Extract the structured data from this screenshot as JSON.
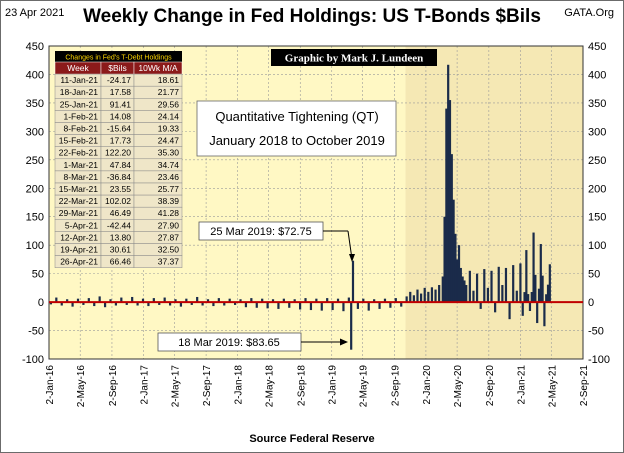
{
  "header": {
    "date": "23 Apr 2021",
    "title": "Weekly Change in Fed Holdings: US T-Bonds $Bils",
    "site": "GATA.Org"
  },
  "credit": "Graphic by Mark J. Lundeen",
  "xlabel": "Source Federal Reserve",
  "annotations": {
    "qt_line1": "Quantitative Tightening (QT)",
    "qt_line2": "January 2018 to October 2019",
    "callout_high": "25 Mar 2019: $72.75",
    "callout_low": "18 Mar 2019: $83.65"
  },
  "table": {
    "title": "Changes in Fed's T-Debt Holdings",
    "headers": [
      "Week",
      "$Bils",
      "10Wk M/A"
    ],
    "rows": [
      [
        "11-Jan-21",
        "-24.17",
        "18.61"
      ],
      [
        "18-Jan-21",
        "17.58",
        "21.77"
      ],
      [
        "25-Jan-21",
        "91.41",
        "29.56"
      ],
      [
        "1-Feb-21",
        "14.08",
        "24.14"
      ],
      [
        "8-Feb-21",
        "-15.64",
        "19.33"
      ],
      [
        "15-Feb-21",
        "17.73",
        "24.47"
      ],
      [
        "22-Feb-21",
        "122.20",
        "35.30"
      ],
      [
        "1-Mar-21",
        "47.84",
        "34.74"
      ],
      [
        "8-Mar-21",
        "-36.84",
        "23.46"
      ],
      [
        "15-Mar-21",
        "23.55",
        "25.77"
      ],
      [
        "22-Mar-21",
        "102.02",
        "38.39"
      ],
      [
        "29-Mar-21",
        "46.49",
        "41.28"
      ],
      [
        "5-Apr-21",
        "-42.44",
        "27.90"
      ],
      [
        "12-Apr-21",
        "13.80",
        "27.87"
      ],
      [
        "19-Apr-21",
        "30.61",
        "32.50"
      ],
      [
        "26-Apr-21",
        "66.46",
        "37.37"
      ]
    ]
  },
  "chart_data": {
    "type": "bar",
    "title": "Weekly Change in Fed Holdings: US T-Bonds $Bils",
    "xlabel": "Source Federal Reserve",
    "ylabel": "",
    "ylim": [
      -100,
      450
    ],
    "yticks": [
      -100,
      -50,
      0,
      50,
      100,
      150,
      200,
      250,
      300,
      350,
      400,
      450
    ],
    "xlim": [
      "2016-01-02",
      "2021-09-02"
    ],
    "xticks": [
      "2-Jan-16",
      "2-May-16",
      "2-Sep-16",
      "2-Jan-17",
      "2-May-17",
      "2-Sep-17",
      "2-Jan-18",
      "2-May-18",
      "2-Sep-18",
      "2-Jan-19",
      "2-May-19",
      "2-Sep-19",
      "2-Jan-20",
      "2-May-20",
      "2-Sep-20",
      "2-Jan-21",
      "2-May-21",
      "2-Sep-21"
    ],
    "grid": true,
    "shaded_regions": [
      {
        "start": "2016-01-02",
        "end": "2019-10-15",
        "color": "#fff8c4"
      },
      {
        "start": "2019-10-15",
        "end": "2021-09-02",
        "color": "#f5e8b4"
      }
    ],
    "colors": {
      "bars": "#1a2b4a",
      "zero_line": "#c00000",
      "table_header": "#8b1a1a"
    },
    "points": [
      [
        "2016-01-09",
        -4
      ],
      [
        "2016-01-30",
        8
      ],
      [
        "2016-02-20",
        -6
      ],
      [
        "2016-03-12",
        5
      ],
      [
        "2016-04-02",
        -8
      ],
      [
        "2016-04-23",
        6
      ],
      [
        "2016-05-14",
        -5
      ],
      [
        "2016-06-04",
        7
      ],
      [
        "2016-06-25",
        -7
      ],
      [
        "2016-07-16",
        10
      ],
      [
        "2016-08-06",
        -9
      ],
      [
        "2016-08-27",
        5
      ],
      [
        "2016-09-17",
        -6
      ],
      [
        "2016-10-08",
        8
      ],
      [
        "2016-10-29",
        -5
      ],
      [
        "2016-11-19",
        9
      ],
      [
        "2016-12-10",
        -6
      ],
      [
        "2016-12-31",
        6
      ],
      [
        "2017-01-21",
        -7
      ],
      [
        "2017-02-11",
        7
      ],
      [
        "2017-03-04",
        -5
      ],
      [
        "2017-03-25",
        8
      ],
      [
        "2017-04-15",
        -6
      ],
      [
        "2017-05-06",
        5
      ],
      [
        "2017-05-27",
        -8
      ],
      [
        "2017-06-17",
        6
      ],
      [
        "2017-07-08",
        -5
      ],
      [
        "2017-07-29",
        9
      ],
      [
        "2017-08-19",
        -6
      ],
      [
        "2017-09-09",
        5
      ],
      [
        "2017-09-30",
        -7
      ],
      [
        "2017-10-21",
        7
      ],
      [
        "2017-11-11",
        -6
      ],
      [
        "2017-12-02",
        6
      ],
      [
        "2017-12-23",
        -5
      ],
      [
        "2018-01-13",
        5
      ],
      [
        "2018-02-03",
        -9
      ],
      [
        "2018-02-24",
        7
      ],
      [
        "2018-03-17",
        -10
      ],
      [
        "2018-04-07",
        6
      ],
      [
        "2018-04-28",
        -11
      ],
      [
        "2018-05-19",
        5
      ],
      [
        "2018-06-09",
        -12
      ],
      [
        "2018-06-30",
        6
      ],
      [
        "2018-07-21",
        -10
      ],
      [
        "2018-08-11",
        5
      ],
      [
        "2018-09-01",
        -13
      ],
      [
        "2018-09-22",
        7
      ],
      [
        "2018-10-13",
        -14
      ],
      [
        "2018-11-03",
        6
      ],
      [
        "2018-11-24",
        -15
      ],
      [
        "2018-12-15",
        7
      ],
      [
        "2019-01-05",
        -14
      ],
      [
        "2019-01-26",
        6
      ],
      [
        "2019-02-16",
        -16
      ],
      [
        "2019-03-09",
        8
      ],
      [
        "2019-03-18",
        -83.65
      ],
      [
        "2019-03-25",
        72.75
      ],
      [
        "2019-04-13",
        -12
      ],
      [
        "2019-05-04",
        6
      ],
      [
        "2019-05-25",
        -15
      ],
      [
        "2019-06-15",
        5
      ],
      [
        "2019-07-06",
        -12
      ],
      [
        "2019-07-27",
        6
      ],
      [
        "2019-08-17",
        -10
      ],
      [
        "2019-09-07",
        7
      ],
      [
        "2019-09-28",
        -8
      ],
      [
        "2019-10-19",
        10
      ],
      [
        "2019-11-02",
        18
      ],
      [
        "2019-11-16",
        12
      ],
      [
        "2019-11-30",
        22
      ],
      [
        "2019-12-14",
        15
      ],
      [
        "2019-12-28",
        25
      ],
      [
        "2020-01-11",
        18
      ],
      [
        "2020-01-25",
        26
      ],
      [
        "2020-02-08",
        22
      ],
      [
        "2020-02-22",
        30
      ],
      [
        "2020-03-07",
        45
      ],
      [
        "2020-03-14",
        150
      ],
      [
        "2020-03-21",
        340
      ],
      [
        "2020-03-28",
        417
      ],
      [
        "2020-04-04",
        355
      ],
      [
        "2020-04-11",
        260
      ],
      [
        "2020-04-18",
        180
      ],
      [
        "2020-04-25",
        120
      ],
      [
        "2020-05-02",
        75
      ],
      [
        "2020-05-09",
        100
      ],
      [
        "2020-05-16",
        60
      ],
      [
        "2020-05-23",
        45
      ],
      [
        "2020-05-30",
        38
      ],
      [
        "2020-06-06",
        30
      ],
      [
        "2020-06-20",
        55
      ],
      [
        "2020-07-04",
        20
      ],
      [
        "2020-07-18",
        50
      ],
      [
        "2020-08-01",
        -12
      ],
      [
        "2020-08-15",
        58
      ],
      [
        "2020-08-29",
        25
      ],
      [
        "2020-09-12",
        55
      ],
      [
        "2020-09-26",
        -18
      ],
      [
        "2020-10-10",
        62
      ],
      [
        "2020-10-24",
        30
      ],
      [
        "2020-11-07",
        60
      ],
      [
        "2020-11-21",
        -30
      ],
      [
        "2020-12-05",
        65
      ],
      [
        "2020-12-19",
        20
      ],
      [
        "2021-01-02",
        68
      ],
      [
        "2021-01-11",
        -24.17
      ],
      [
        "2021-01-18",
        17.58
      ],
      [
        "2021-01-25",
        91.41
      ],
      [
        "2021-02-01",
        14.08
      ],
      [
        "2021-02-08",
        -15.64
      ],
      [
        "2021-02-15",
        17.73
      ],
      [
        "2021-02-22",
        122.2
      ],
      [
        "2021-03-01",
        47.84
      ],
      [
        "2021-03-08",
        -36.84
      ],
      [
        "2021-03-15",
        23.55
      ],
      [
        "2021-03-22",
        102.02
      ],
      [
        "2021-03-29",
        46.49
      ],
      [
        "2021-04-05",
        -42.44
      ],
      [
        "2021-04-12",
        13.8
      ],
      [
        "2021-04-19",
        30.61
      ],
      [
        "2021-04-26",
        66.46
      ]
    ]
  }
}
